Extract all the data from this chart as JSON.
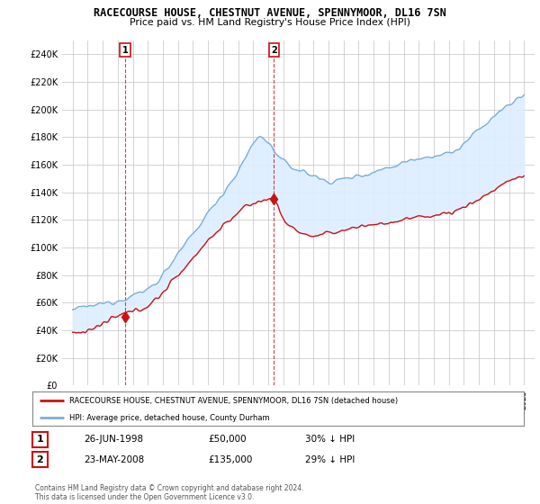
{
  "title": "RACECOURSE HOUSE, CHESTNUT AVENUE, SPENNYMOOR, DL16 7SN",
  "subtitle": "Price paid vs. HM Land Registry's House Price Index (HPI)",
  "ylim": [
    0,
    250000
  ],
  "ytick_vals": [
    0,
    20000,
    40000,
    60000,
    80000,
    100000,
    120000,
    140000,
    160000,
    180000,
    200000,
    220000,
    240000
  ],
  "ytick_labels": [
    "£0",
    "£20K",
    "£40K",
    "£60K",
    "£80K",
    "£100K",
    "£120K",
    "£140K",
    "£160K",
    "£180K",
    "£200K",
    "£220K",
    "£240K"
  ],
  "legend_line1": "RACECOURSE HOUSE, CHESTNUT AVENUE, SPENNYMOOR, DL16 7SN (detached house)",
  "legend_line2": "HPI: Average price, detached house, County Durham",
  "ann1_date": "26-JUN-1998",
  "ann1_price": "£50,000",
  "ann1_hpi": "30% ↓ HPI",
  "ann1_year": 1998.48,
  "ann1_value": 50000,
  "ann2_date": "23-MAY-2008",
  "ann2_price": "£135,000",
  "ann2_hpi": "29% ↓ HPI",
  "ann2_year": 2008.38,
  "ann2_value": 135000,
  "hpi_color": "#7aaddc",
  "price_color": "#cc1111",
  "fill_color": "#ddeeff",
  "bg_color": "#ffffff",
  "grid_color": "#cccccc",
  "copyright_text": "Contains HM Land Registry data © Crown copyright and database right 2024.\nThis data is licensed under the Open Government Licence v3.0."
}
